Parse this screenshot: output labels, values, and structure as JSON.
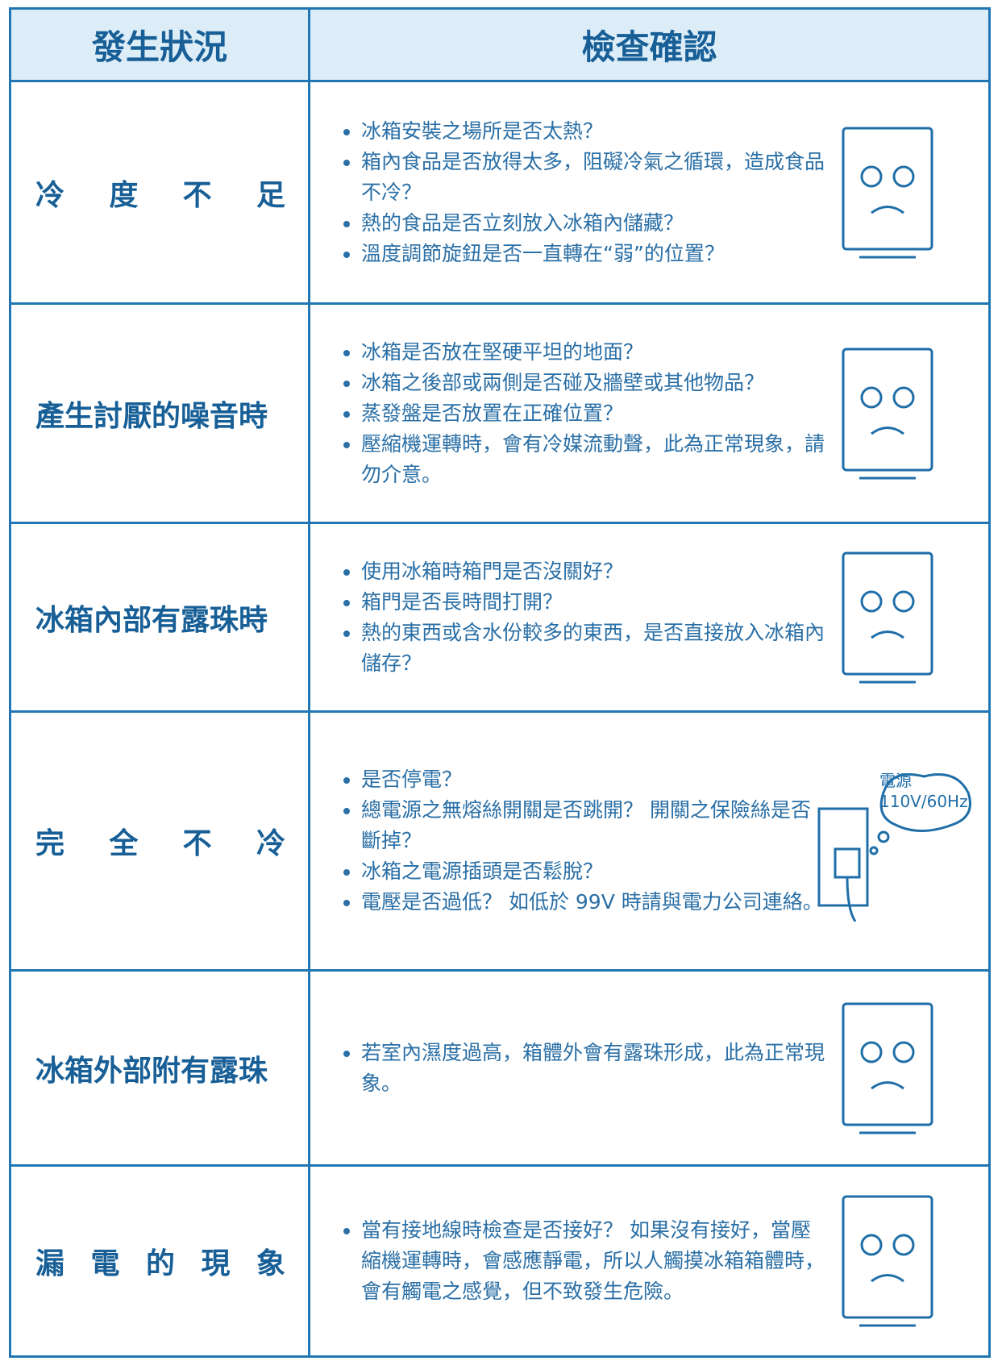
{
  "header": {
    "columns": [
      "發生狀況",
      "檢查確認"
    ]
  },
  "rows": [
    {
      "condition": "冷度不足",
      "checks": [
        "冰箱安裝之場所是否太熱？",
        "箱內食品是否放得太多，阻礙冷氣之循環，造成食品不冷？",
        "熱的食品是否立刻放入冰箱內儲藏？",
        "溫度調節旋鈕是否一直轉在“弱”的位置？"
      ]
    },
    {
      "condition": "產生討厭的噪音時",
      "checks": [
        "冰箱是否放在堅硬平坦的地面？",
        "冰箱之後部或兩側是否碰及牆壁或其他物品？",
        "蒸發盤是否放置在正確位置？",
        "壓縮機運轉時，會有冷媒流動聲，此為正常現象，請勿介意。"
      ]
    },
    {
      "condition": "冰箱內部有露珠時",
      "checks": [
        "使用冰箱時箱門是否沒關好？",
        "箱門是否長時間打開？",
        "熱的東西或含水份較多的東西，是否直接放入冰箱內儲存？"
      ]
    },
    {
      "condition": "完全不冷",
      "checks": [
        "是否停電？",
        "總電源之無熔絲開關是否跳開？ 開關之保險絲是否斷掉？",
        "冰箱之電源插頭是否鬆脫？",
        "電壓是否過低？ 如低於 99V 時請與電力公司連絡。"
      ],
      "illustration": [
        "電源",
        "110V/60Hz"
      ]
    },
    {
      "condition": "冰箱外部附有露珠",
      "checks": [
        "若室內濕度過高，箱體外會有露珠形成，此為正常現象。"
      ]
    },
    {
      "condition": "漏電的現象",
      "checks": [
        "當有接地線時檢查是否接好？ 如果沒有接好，當壓縮機運轉時，會感應靜電，所以人觸摸冰箱箱體時，會有觸電之感覺，但不致發生危險。"
      ]
    }
  ]
}
